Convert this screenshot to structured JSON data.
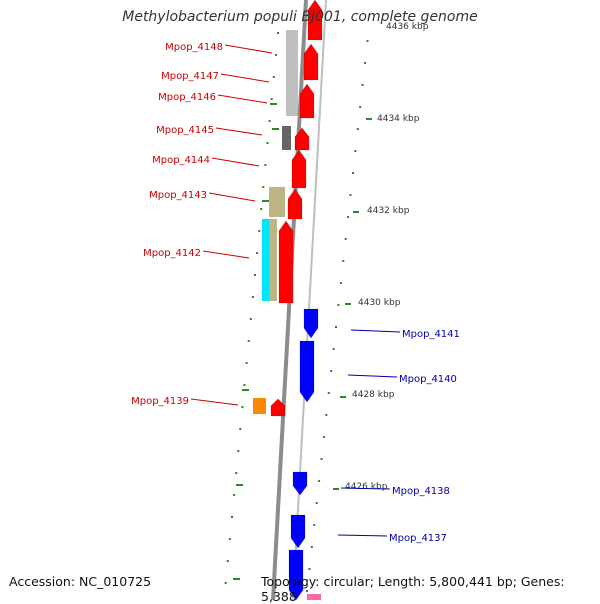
{
  "title": "Methylobacterium populi BJ001, complete genome",
  "accession": "Accession: NC_010725",
  "topology": "Topology: circular; Length: 5,800,441 bp; Genes: 5,388",
  "colors": {
    "backbone": "#8c8c8c",
    "forward_gene": "#ff0000",
    "reverse_gene": "#0000ff",
    "forward_label": "#cc0000",
    "reverse_label": "#0000aa",
    "tick": "#2a8a2a",
    "scale_text": "#333333"
  },
  "scale_labels": [
    "4436 kbp",
    "4434 kbp",
    "4432 kbp",
    "4430 kbp",
    "4428 kbp",
    "4426 kbp"
  ],
  "forward_genes": [
    "Mpop_4148",
    "Mpop_4147",
    "Mpop_4146",
    "Mpop_4145",
    "Mpop_4144",
    "Mpop_4143",
    "Mpop_4142",
    "Mpop_4139"
  ],
  "reverse_genes": [
    "Mpop_4141",
    "Mpop_4140",
    "Mpop_4138",
    "Mpop_4137"
  ]
}
